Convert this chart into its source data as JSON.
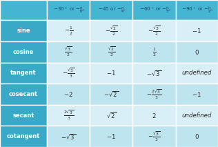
{
  "col_headers_math": [
    "$-30^\\circ$ or $-\\frac{\\pi}{6}$",
    "$-45$ or $-\\frac{\\pi}{4}$",
    "$-60^\\circ$ or $-\\frac{\\pi}{3}$",
    "$-90^\\circ$ or $-\\frac{\\pi}{2}$"
  ],
  "row_headers": [
    "sine",
    "cosine",
    "tangent",
    "cosecant",
    "secant",
    "cotangent"
  ],
  "cells": [
    [
      "$-\\frac{1}{2}$",
      "$-\\frac{\\sqrt{2}}{2}$",
      "$-\\frac{\\sqrt{3}}{2}$",
      "$-1$"
    ],
    [
      "$\\frac{\\sqrt{3}}{2}$",
      "$\\frac{\\sqrt{2}}{2}$",
      "$\\frac{1}{2}$",
      "$0$"
    ],
    [
      "$-\\frac{\\sqrt{3}}{3}$",
      "$-1$",
      "$-\\sqrt{3}$",
      "undefined"
    ],
    [
      "$-2$",
      "$-\\sqrt{2}$",
      "$-\\frac{2\\sqrt{3}}{3}$",
      "$-1$"
    ],
    [
      "$\\frac{2\\sqrt{3}}{3}$",
      "$\\sqrt{2}$",
      "$2$",
      "undefined"
    ],
    [
      "$-\\sqrt{3}$",
      "$-1$",
      "$-\\frac{\\sqrt{3}}{3}$",
      "$0$"
    ]
  ],
  "header_bg": "#45b6d2",
  "row_header_bg": "#38aac8",
  "even_row_bg": "#d8eff7",
  "odd_row_bg": "#bee4ef",
  "header_text_color": "#1a4a6b",
  "row_header_text_color": "#ffffff",
  "cell_text_color": "#2a2a2a",
  "border_color": "#ffffff",
  "fig_bg": "#aed6e8",
  "n_rows": 6,
  "n_cols": 4
}
